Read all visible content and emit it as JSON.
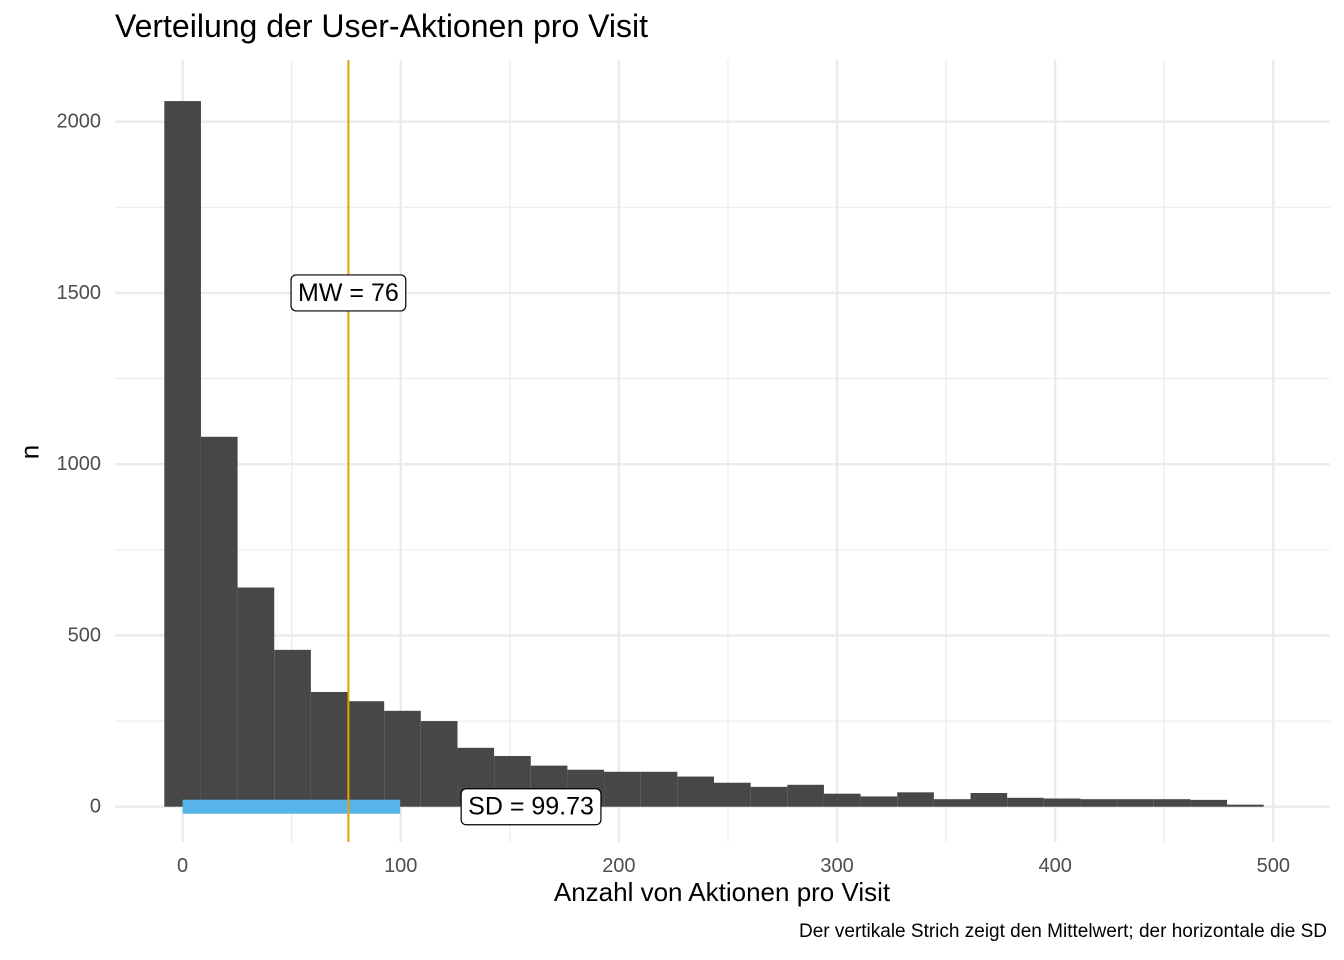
{
  "chart_data": {
    "type": "bar",
    "title": "Verteilung der User-Aktionen pro Visit",
    "xlabel": "Anzahl von Aktionen pro Visit",
    "ylabel": "n",
    "caption": "Der vertikale Strich zeigt den Mittelwert; der horizontale die SD",
    "xlim": [
      -31,
      526
    ],
    "ylim": [
      -103,
      2180
    ],
    "x_ticks": [
      0,
      100,
      200,
      300,
      400,
      500
    ],
    "y_ticks": [
      0,
      500,
      1000,
      1500,
      2000
    ],
    "bin_width": 16.8,
    "bins": [
      {
        "x": 0.0,
        "n": 2060
      },
      {
        "x": 16.8,
        "n": 1080
      },
      {
        "x": 33.6,
        "n": 640
      },
      {
        "x": 50.4,
        "n": 458
      },
      {
        "x": 67.2,
        "n": 335
      },
      {
        "x": 84.0,
        "n": 308
      },
      {
        "x": 100.8,
        "n": 280
      },
      {
        "x": 117.6,
        "n": 250
      },
      {
        "x": 134.4,
        "n": 172
      },
      {
        "x": 151.2,
        "n": 148
      },
      {
        "x": 168.0,
        "n": 120
      },
      {
        "x": 184.8,
        "n": 108
      },
      {
        "x": 201.6,
        "n": 102
      },
      {
        "x": 218.4,
        "n": 102
      },
      {
        "x": 235.2,
        "n": 88
      },
      {
        "x": 252.0,
        "n": 70
      },
      {
        "x": 268.8,
        "n": 58
      },
      {
        "x": 285.6,
        "n": 64
      },
      {
        "x": 302.4,
        "n": 38
      },
      {
        "x": 319.2,
        "n": 30
      },
      {
        "x": 336.0,
        "n": 42
      },
      {
        "x": 352.8,
        "n": 22
      },
      {
        "x": 369.6,
        "n": 40
      },
      {
        "x": 386.4,
        "n": 26
      },
      {
        "x": 403.2,
        "n": 24
      },
      {
        "x": 420.0,
        "n": 22
      },
      {
        "x": 436.8,
        "n": 22
      },
      {
        "x": 453.6,
        "n": 22
      },
      {
        "x": 470.4,
        "n": 20
      },
      {
        "x": 487.2,
        "n": 6
      }
    ],
    "mean": 76,
    "sd": 99.73,
    "mean_label": "MW = 76",
    "sd_label": "SD = 99.73",
    "colors": {
      "bars": "#474747",
      "mean_line": "#E69F00",
      "sd_line": "#56B4E9",
      "grid": "#EBEBEB",
      "text": "#4D4D4D"
    }
  }
}
